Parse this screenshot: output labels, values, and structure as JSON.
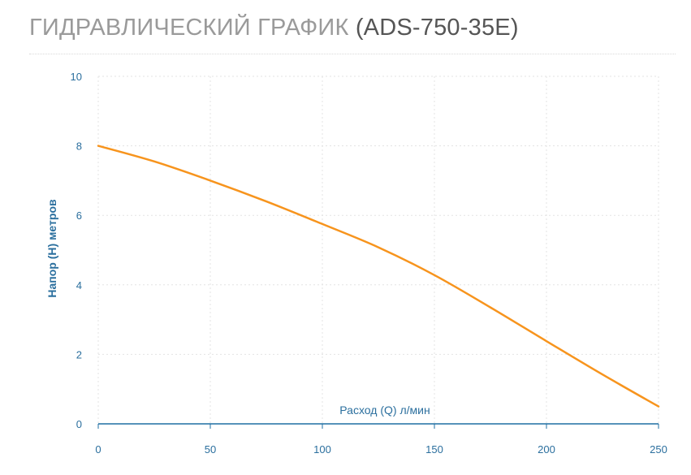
{
  "header": {
    "title_main": "ГИДРАВЛИЧЕСКИЙ ГРАФИК",
    "title_model": "(ADS-750-35E)"
  },
  "chart_data": {
    "type": "line",
    "xlabel": "Расход (Q) л/мин",
    "ylabel": "Напор (Н) метров",
    "xlim": [
      0,
      250
    ],
    "ylim": [
      0,
      10
    ],
    "x_ticks": [
      "0",
      "50",
      "100",
      "150",
      "200",
      "250"
    ],
    "y_ticks": [
      "0",
      "2",
      "4",
      "6",
      "8",
      "10"
    ],
    "grid": true,
    "series": [
      {
        "color": "#f7941d",
        "x": [
          0,
          25,
          50,
          75,
          100,
          125,
          150,
          175,
          200,
          225,
          250
        ],
        "y": [
          8.0,
          7.55,
          7.0,
          6.4,
          5.75,
          5.08,
          4.28,
          3.35,
          2.38,
          1.42,
          0.5
        ]
      }
    ],
    "colors": {
      "axis_text": "#2b6f9e",
      "grid": "#e3e3e3",
      "axis_line": "#1f6fa3"
    }
  }
}
